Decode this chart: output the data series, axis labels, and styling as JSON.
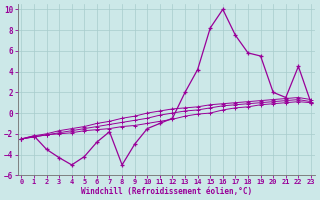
{
  "xlabel": "Windchill (Refroidissement éolien,°C)",
  "x": [
    0,
    1,
    2,
    3,
    4,
    5,
    6,
    7,
    8,
    9,
    10,
    11,
    12,
    13,
    14,
    15,
    16,
    17,
    18,
    19,
    20,
    21,
    22,
    23
  ],
  "y_main": [
    -2.5,
    -2.2,
    -3.5,
    -4.3,
    -5.0,
    -4.2,
    -2.8,
    -1.8,
    -5.0,
    -3.0,
    -1.5,
    -1.0,
    -0.5,
    2.0,
    4.2,
    8.2,
    10.0,
    7.5,
    5.8,
    5.5,
    2.0,
    1.5,
    4.5,
    1.0
  ],
  "y_line1": [
    -2.5,
    -2.3,
    -2.1,
    -2.0,
    -1.9,
    -1.7,
    -1.6,
    -1.5,
    -1.3,
    -1.2,
    -1.0,
    -0.8,
    -0.6,
    -0.3,
    -0.1,
    0.0,
    0.3,
    0.5,
    0.6,
    0.8,
    0.9,
    1.0,
    1.1,
    1.0
  ],
  "y_line2": [
    -2.5,
    -2.3,
    -2.1,
    -1.9,
    -1.7,
    -1.5,
    -1.3,
    -1.1,
    -0.9,
    -0.7,
    -0.5,
    -0.2,
    0.0,
    0.2,
    0.3,
    0.5,
    0.7,
    0.8,
    0.9,
    1.0,
    1.1,
    1.2,
    1.3,
    1.1
  ],
  "y_line3": [
    -2.5,
    -2.2,
    -2.0,
    -1.7,
    -1.5,
    -1.3,
    -1.0,
    -0.8,
    -0.5,
    -0.3,
    0.0,
    0.2,
    0.4,
    0.5,
    0.6,
    0.8,
    0.9,
    1.0,
    1.1,
    1.2,
    1.3,
    1.4,
    1.5,
    1.3
  ],
  "line_color": "#990099",
  "bg_color": "#cce8e8",
  "grid_color": "#a8cccc",
  "xlim": [
    -0.3,
    23.3
  ],
  "ylim": [
    -6,
    10.5
  ],
  "yticks": [
    -6,
    -4,
    -2,
    0,
    2,
    4,
    6,
    8,
    10
  ],
  "xticks": [
    0,
    1,
    2,
    3,
    4,
    5,
    6,
    7,
    8,
    9,
    10,
    11,
    12,
    13,
    14,
    15,
    16,
    17,
    18,
    19,
    20,
    21,
    22,
    23
  ]
}
